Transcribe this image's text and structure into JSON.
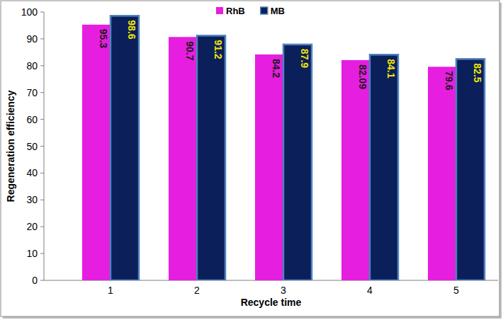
{
  "chart_data": {
    "type": "bar",
    "categories": [
      "1",
      "2",
      "3",
      "4",
      "5"
    ],
    "series": [
      {
        "name": "RhB",
        "color": "#e61ee0",
        "values": [
          95.3,
          90.7,
          84.2,
          82.09,
          79.6
        ]
      },
      {
        "name": "MB",
        "color": "#0b1f5a",
        "values": [
          98.6,
          91.2,
          87.9,
          84.1,
          82.5
        ]
      }
    ],
    "x_label": "Recycle time",
    "y_label": "Regeneration efficiency",
    "ylim": [
      0,
      100
    ],
    "yticks": [
      0,
      10,
      20,
      30,
      40,
      50,
      60,
      70,
      80,
      90,
      100
    ],
    "grid": false,
    "legend": "top",
    "data_labels": true
  }
}
